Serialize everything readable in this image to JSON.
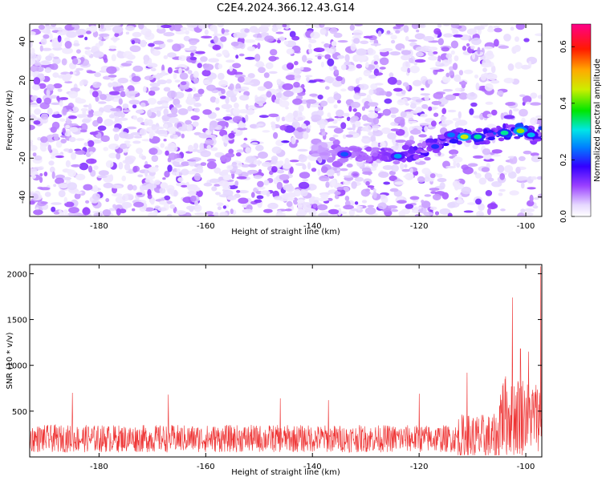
{
  "figure_title": "C2E4.2024.366.12.43.G14",
  "chart_data": [
    {
      "type": "heatmap",
      "title": "C2E4.2024.366.12.43.G14",
      "xlabel": "Height of straight line (km)",
      "ylabel": "Frequency (Hz)",
      "xlim": [
        -193,
        -97
      ],
      "ylim": [
        -50,
        49
      ],
      "x_ticks": [
        -180,
        -160,
        -140,
        -120,
        -100
      ],
      "y_ticks": [
        -40,
        -20,
        0,
        20,
        40
      ],
      "colormap": "rainbow (white-violet-blue-cyan-green-yellow-red-magenta)",
      "colorbar": {
        "label": "Normalized spectral amplitude",
        "range": [
          0.0,
          0.68
        ],
        "ticks": [
          0.0,
          0.2,
          0.4,
          0.6
        ],
        "tick_labels": [
          "0.0",
          "0.2",
          "0.4",
          "0.6"
        ]
      },
      "background": "speckle noise, amplitude ~0.05-0.15 (violet/purple), sparser toward -100 km",
      "signal_band": [
        {
          "x": -134,
          "y": -18,
          "amplitude": 0.22
        },
        {
          "x": -124,
          "y": -19,
          "amplitude": 0.26
        },
        {
          "x": -117,
          "y": -14,
          "amplitude": 0.2
        },
        {
          "x": -114,
          "y": -8,
          "amplitude": 0.24
        },
        {
          "x": -111.5,
          "y": -9,
          "amplitude": 0.45
        },
        {
          "x": -109,
          "y": -9,
          "amplitude": 0.33
        },
        {
          "x": -104,
          "y": -7,
          "amplitude": 0.33
        },
        {
          "x": -101,
          "y": -6,
          "amplitude": 0.43
        },
        {
          "x": -99,
          "y": -8,
          "amplitude": 0.28
        }
      ]
    },
    {
      "type": "line",
      "xlabel": "Height of straight line (km)",
      "ylabel": "SNR (10 * v/v)",
      "xlim": [
        -193,
        -97
      ],
      "ylim": [
        0,
        2100
      ],
      "x_ticks": [
        -180,
        -160,
        -140,
        -120,
        -100
      ],
      "y_ticks": [
        500,
        1000,
        1500,
        2000
      ],
      "color": "#ee3333",
      "baseline_level": 200,
      "noise_amplitude": 150,
      "notable_peaks": [
        {
          "x": -185,
          "y": 700
        },
        {
          "x": -167,
          "y": 680
        },
        {
          "x": -146,
          "y": 640
        },
        {
          "x": -137,
          "y": 620
        },
        {
          "x": -120,
          "y": 690
        },
        {
          "x": -111,
          "y": 920
        },
        {
          "x": -102.5,
          "y": 1740
        },
        {
          "x": -101,
          "y": 1180
        },
        {
          "x": -99.5,
          "y": 1150
        },
        {
          "x": -97.2,
          "y": 2080
        }
      ]
    }
  ],
  "colors": {
    "snr_line": "#ee3333",
    "frame": "#000000",
    "background": "#ffffff"
  }
}
